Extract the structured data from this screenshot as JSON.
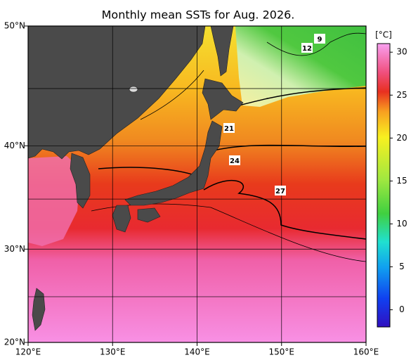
{
  "map": {
    "title": "Monthly mean SSTs for Aug. 2026.",
    "lonlim": [
      120,
      160
    ],
    "latlim": [
      20,
      50
    ],
    "lon_ticks": [
      {
        "value": 120,
        "label": "120°E"
      },
      {
        "value": 130,
        "label": "130°E"
      },
      {
        "value": 140,
        "label": "140°E"
      },
      {
        "value": 150,
        "label": "150°E"
      },
      {
        "value": 160,
        "label": "160°E"
      }
    ],
    "lat_ticks": [
      {
        "value": 20,
        "label": "20°N"
      },
      {
        "value": 30,
        "label": "30°N"
      },
      {
        "value": 40,
        "label": "40°N"
      },
      {
        "value": 50,
        "label": "50°N"
      }
    ],
    "lat_grid": [
      25,
      35,
      45
    ],
    "colorbar": {
      "unit": "[°C]",
      "clim": [
        -2,
        31
      ],
      "ticks": [
        0,
        5,
        10,
        15,
        20,
        25,
        30
      ]
    },
    "contour_labels": [
      9,
      12,
      21,
      24,
      27
    ]
  }
}
